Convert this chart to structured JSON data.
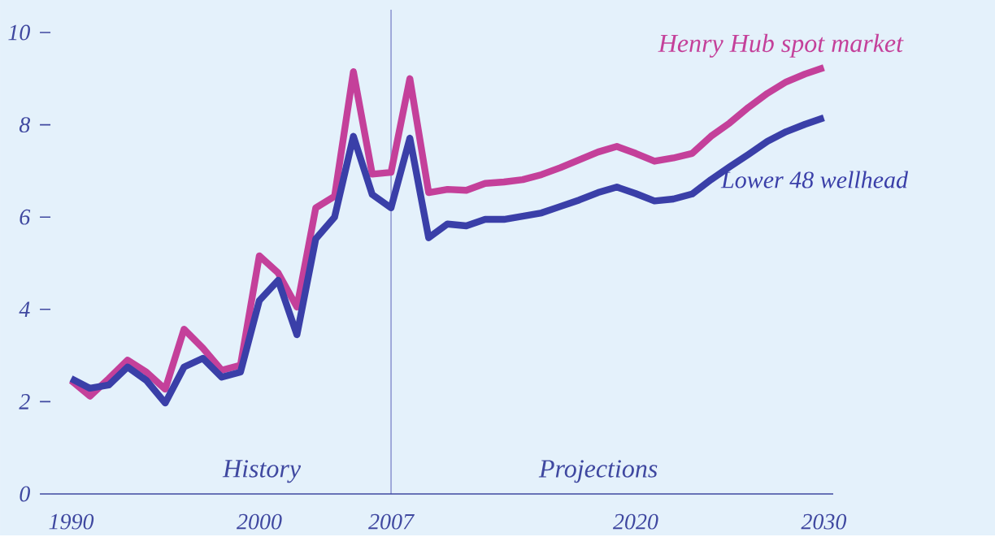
{
  "chart_data": {
    "type": "line",
    "x": [
      1990,
      1991,
      1992,
      1993,
      1994,
      1995,
      1996,
      1997,
      1998,
      1999,
      2000,
      2001,
      2002,
      2003,
      2004,
      2005,
      2006,
      2007,
      2008,
      2009,
      2010,
      2011,
      2012,
      2013,
      2014,
      2015,
      2016,
      2017,
      2018,
      2019,
      2020,
      2021,
      2022,
      2023,
      2024,
      2025,
      2026,
      2027,
      2028,
      2029,
      2030
    ],
    "series": [
      {
        "name": "Henry Hub spot market",
        "color": "#c4409a",
        "values": [
          2.46,
          2.12,
          2.5,
          2.9,
          2.64,
          2.27,
          3.57,
          3.16,
          2.68,
          2.79,
          5.16,
          4.79,
          4.05,
          6.2,
          6.45,
          9.15,
          6.93,
          6.97,
          9.0,
          6.53,
          6.6,
          6.58,
          6.73,
          6.76,
          6.81,
          6.92,
          7.07,
          7.24,
          7.41,
          7.53,
          7.38,
          7.21,
          7.28,
          7.38,
          7.75,
          8.04,
          8.38,
          8.68,
          8.93,
          9.1,
          9.24
        ]
      },
      {
        "name": "Lower 48 wellhead",
        "color": "#3a3fa8",
        "values": [
          2.5,
          2.29,
          2.36,
          2.75,
          2.46,
          1.97,
          2.75,
          2.94,
          2.53,
          2.64,
          4.19,
          4.63,
          3.45,
          5.53,
          6.0,
          7.75,
          6.49,
          6.2,
          7.71,
          5.55,
          5.85,
          5.81,
          5.95,
          5.95,
          6.02,
          6.09,
          6.23,
          6.37,
          6.53,
          6.65,
          6.51,
          6.35,
          6.39,
          6.5,
          6.81,
          7.09,
          7.36,
          7.64,
          7.85,
          8.01,
          8.15
        ]
      }
    ],
    "xlim": [
      1988.9,
      2030.5
    ],
    "ylim": [
      0,
      10
    ],
    "xticks": [
      1990,
      2000,
      2007,
      2020,
      2030
    ],
    "yticks": [
      0,
      2,
      4,
      6,
      8,
      10
    ],
    "ref_lines": [
      {
        "axis": "x",
        "value": 2007,
        "color": "#3a3fa8"
      }
    ],
    "annotations": [
      "History",
      "Projections"
    ]
  }
}
